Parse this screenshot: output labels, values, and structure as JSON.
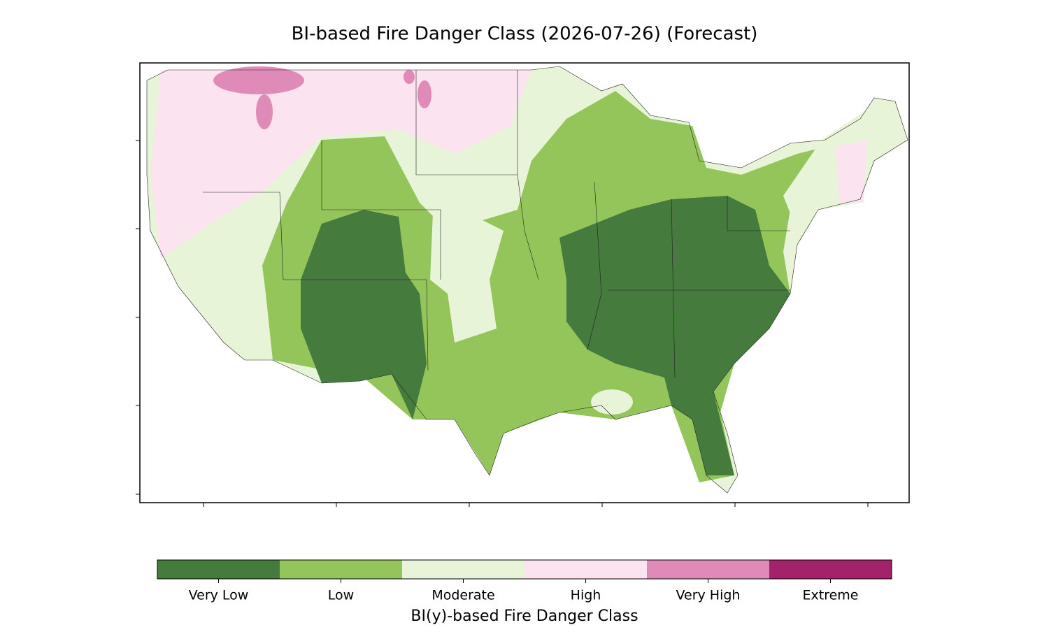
{
  "title": "BI-based Fire Danger Class (2026-07-26) (Forecast)",
  "colorbar": {
    "label": "BI(y)-based Fire Danger Class",
    "classes": [
      {
        "name": "Very Low",
        "color": "#457b3c"
      },
      {
        "name": "Low",
        "color": "#93c55a"
      },
      {
        "name": "Moderate",
        "color": "#e8f4d8"
      },
      {
        "name": "High",
        "color": "#fbe3ef"
      },
      {
        "name": "Very High",
        "color": "#e08ab8"
      },
      {
        "name": "Extreme",
        "color": "#a3236a"
      }
    ]
  }
}
